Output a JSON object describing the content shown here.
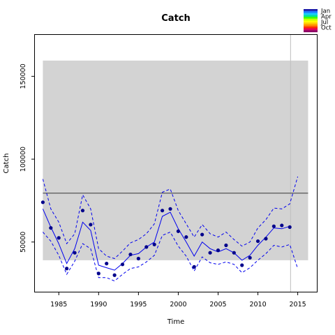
{
  "chart_data": {
    "type": "line",
    "title": "Catch",
    "xlabel": "Time",
    "ylabel": "Catch",
    "xlim": [
      1982.0,
      2017.4
    ],
    "ylim": [
      20000,
      175000
    ],
    "x_ticks": [
      1985,
      1990,
      1995,
      2000,
      2005,
      2010,
      2015
    ],
    "y_ticks": [
      50000,
      100000,
      150000
    ],
    "grid": false,
    "colors": {
      "fit": "#0000ee",
      "observed": "#00008b",
      "band": "#d3d3d3",
      "reference": "#555555",
      "marker_line": "#bebebe"
    },
    "shaded_band": {
      "x": [
        1983,
        2016.3
      ],
      "y": [
        39000,
        159500
      ]
    },
    "reference_line": 79500,
    "vertical_marker": 2014.1,
    "legend": {
      "position": "top-right",
      "labels": [
        "Jan",
        "Apr",
        "Jul",
        "Oct"
      ],
      "colors": [
        "#1a1aa8",
        "#1e78ff",
        "#19c8ff",
        "#00e0a0",
        "#3cff00",
        "#c8ff00",
        "#ffff00",
        "#ffc800",
        "#ff8c00",
        "#ff3200",
        "#e6005a",
        "#8c0064"
      ]
    },
    "series": [
      {
        "role": "fitted",
        "style": "solid",
        "x": [
          1983,
          1984,
          1985,
          1986,
          1987,
          1988,
          1989,
          1990,
          1991,
          1992,
          1993,
          1994,
          1995,
          1996,
          1997,
          1998,
          1999,
          2000,
          2001,
          2002,
          2003,
          2004,
          2005,
          2006,
          2007,
          2008,
          2009,
          2010,
          2011,
          2012,
          2013,
          2014
        ],
        "values": [
          70000,
          59000,
          49000,
          37000,
          46000,
          62000,
          57000,
          36000,
          34500,
          33000,
          37000,
          42000,
          43000,
          47000,
          50000,
          65500,
          68000,
          58000,
          50000,
          41500,
          50000,
          46000,
          44000,
          46000,
          43500,
          39000,
          42000,
          48000,
          53000,
          58500,
          58000,
          59500
        ]
      },
      {
        "role": "upper-bound",
        "style": "dashed",
        "x": [
          1983,
          1984,
          1985,
          1986,
          1987,
          1988,
          1989,
          1990,
          1991,
          1992,
          1993,
          1994,
          1995,
          1996,
          1997,
          1998,
          1999,
          2000,
          2001,
          2002,
          2003,
          2004,
          2005,
          2006,
          2007,
          2008,
          2009,
          2010,
          2011,
          2012,
          2013,
          2014,
          2015
        ],
        "values": [
          88000,
          70000,
          62000,
          49000,
          55000,
          78500,
          70000,
          46000,
          41500,
          40000,
          44500,
          49500,
          51500,
          55000,
          61000,
          80000,
          82000,
          69000,
          61000,
          53000,
          60500,
          55000,
          53000,
          56000,
          51500,
          47500,
          50000,
          58500,
          63500,
          70500,
          70000,
          73000,
          89500
        ]
      },
      {
        "role": "lower-bound",
        "style": "dashed",
        "x": [
          1983,
          1984,
          1985,
          1986,
          1987,
          1988,
          1989,
          1990,
          1991,
          1992,
          1993,
          1994,
          1995,
          1996,
          1997,
          1998,
          1999,
          2000,
          2001,
          2002,
          2003,
          2004,
          2005,
          2006,
          2007,
          2008,
          2009,
          2010,
          2011,
          2012,
          2013,
          2014,
          2015
        ],
        "values": [
          56000,
          50500,
          42000,
          30500,
          38500,
          49000,
          46000,
          28500,
          28500,
          26500,
          30500,
          34000,
          35000,
          38000,
          42000,
          54000,
          56000,
          47500,
          41500,
          32500,
          41000,
          37500,
          36500,
          38000,
          36500,
          31500,
          34500,
          39000,
          43000,
          48000,
          47000,
          48500,
          34000
        ]
      },
      {
        "role": "observed",
        "style": "points",
        "x": [
          1983,
          1984,
          1985,
          1986,
          1987,
          1988,
          1989,
          1990,
          1991,
          1992,
          1993,
          1994,
          1995,
          1996,
          1997,
          1998,
          1999,
          2000,
          2001,
          2002,
          2003,
          2004,
          2005,
          2006,
          2007,
          2008,
          2009,
          2010,
          2011,
          2012,
          2013,
          2014
        ],
        "values": [
          74000,
          58500,
          52500,
          34000,
          43500,
          69000,
          60500,
          31000,
          37000,
          30000,
          36500,
          42500,
          40000,
          47000,
          48500,
          69000,
          70000,
          56500,
          53000,
          35000,
          54500,
          43500,
          45000,
          48000,
          43500,
          36000,
          40500,
          50500,
          52000,
          59500,
          60000,
          59000
        ]
      }
    ]
  }
}
